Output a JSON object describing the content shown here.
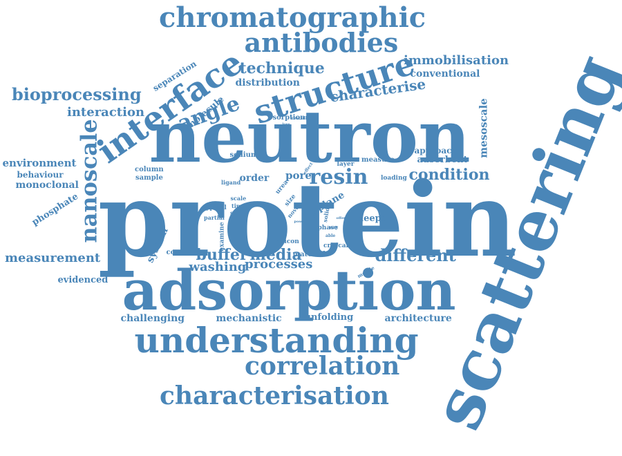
{
  "color": "#4a86b8",
  "words": [
    {
      "text": "protein"
    },
    {
      "text": "neutron"
    },
    {
      "text": "scattering"
    },
    {
      "text": "adsorption"
    },
    {
      "text": "understanding"
    },
    {
      "text": "structure"
    },
    {
      "text": "interface"
    },
    {
      "text": "chromatographic"
    },
    {
      "text": "antibodies"
    },
    {
      "text": "characterisation"
    },
    {
      "text": "correlation"
    },
    {
      "text": "nanoscale"
    },
    {
      "text": "angle"
    },
    {
      "text": "resin"
    },
    {
      "text": "media"
    },
    {
      "text": "buffer"
    },
    {
      "text": "different"
    },
    {
      "text": "bioprocessing"
    },
    {
      "text": "technique"
    },
    {
      "text": "immobilisation"
    },
    {
      "text": "characterise"
    },
    {
      "text": "condition"
    },
    {
      "text": "processes"
    },
    {
      "text": "washing"
    },
    {
      "text": "measurement"
    },
    {
      "text": "interaction"
    },
    {
      "text": "challenging"
    },
    {
      "text": "mechanistic"
    },
    {
      "text": "architecture"
    },
    {
      "text": "unfolding"
    },
    {
      "text": "conventional"
    },
    {
      "text": "distribution"
    },
    {
      "text": "environment"
    },
    {
      "text": "monoclonal"
    },
    {
      "text": "behaviour"
    },
    {
      "text": "evidenced"
    },
    {
      "text": "mesoscale"
    },
    {
      "text": "adsorbent"
    },
    {
      "text": "approach"
    },
    {
      "text": "deeper"
    },
    {
      "text": "pore"
    },
    {
      "text": "order"
    },
    {
      "text": "system"
    },
    {
      "text": "molecule"
    },
    {
      "text": "phosphate"
    },
    {
      "text": "separation"
    },
    {
      "text": "sorption"
    },
    {
      "text": "sodium"
    },
    {
      "text": "column"
    },
    {
      "text": "sample"
    },
    {
      "text": "ligand"
    },
    {
      "text": "layer"
    },
    {
      "text": "measure"
    },
    {
      "text": "loading"
    },
    {
      "text": "plane"
    },
    {
      "text": "contrast"
    },
    {
      "text": "silicon"
    },
    {
      "text": "material"
    },
    {
      "text": "critical"
    },
    {
      "text": "mobile"
    },
    {
      "text": "examine"
    },
    {
      "text": "typical"
    },
    {
      "text": "partial"
    },
    {
      "text": "scale"
    },
    {
      "text": "time"
    },
    {
      "text": "study"
    },
    {
      "text": "phase"
    },
    {
      "text": "size"
    },
    {
      "text": "urea"
    },
    {
      "text": "solid"
    },
    {
      "text": "novel"
    },
    {
      "text": "effect"
    },
    {
      "text": "free"
    },
    {
      "text": "rest"
    },
    {
      "text": "cell"
    },
    {
      "text": "able"
    },
    {
      "text": "way"
    },
    {
      "text": "pose"
    },
    {
      "text": "offer"
    },
    {
      "text": "lose"
    }
  ]
}
